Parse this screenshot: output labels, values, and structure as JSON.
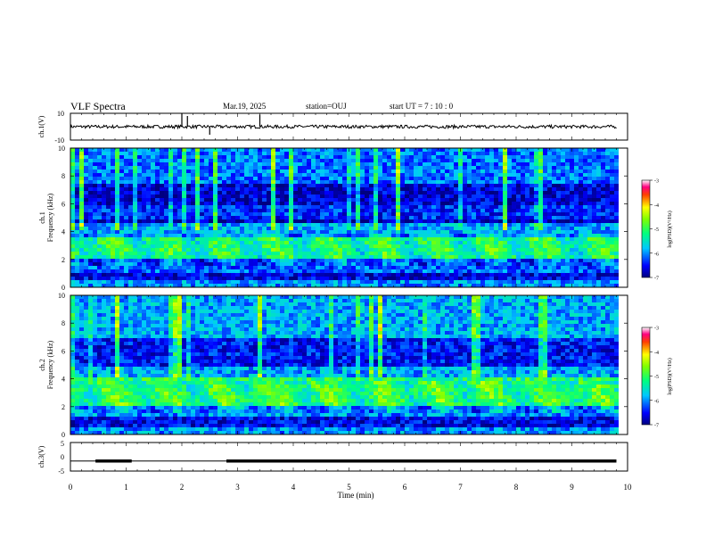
{
  "header": {
    "title": "VLF Spectra",
    "date": "Mar.19, 2025",
    "station": "station=OUJ",
    "start": "start  UT =   7 : 10 : 0"
  },
  "chart_data": [
    {
      "type": "line",
      "panel": "ch1-waveform",
      "ylabel": "ch.1(V)",
      "ylim": [
        -10,
        10
      ],
      "yticks": [
        "10",
        "-10"
      ],
      "xlim": [
        0,
        10
      ],
      "baseline": 0,
      "noise_amplitude": 1.2,
      "spikes": [
        {
          "x": 2.0,
          "y": 10
        },
        {
          "x": 2.1,
          "y": 8
        },
        {
          "x": 2.5,
          "y": -6
        },
        {
          "x": 3.4,
          "y": 9
        }
      ]
    },
    {
      "type": "heatmap",
      "panel": "ch1-spectrogram",
      "ylabel": "ch.1\nFrequency (kHz)",
      "ylim": [
        0,
        10
      ],
      "yticks": [
        "0",
        "2",
        "4",
        "6",
        "8",
        "10"
      ],
      "xlim": [
        0,
        10
      ],
      "colorbar": {
        "label": "log(PSD)(V²/Hz)",
        "ticks": [
          "-3",
          "-4",
          "-5",
          "-6",
          "-7"
        ],
        "range": [
          -7,
          -3
        ]
      },
      "bands": [
        {
          "f0": 0,
          "f1": 0.5,
          "level": -6.0
        },
        {
          "f0": 0.5,
          "f1": 1.0,
          "level": -6.6
        },
        {
          "f0": 1.0,
          "f1": 2.0,
          "level": -6.2
        },
        {
          "f0": 2.0,
          "f1": 3.5,
          "level": -5.2
        },
        {
          "f0": 3.5,
          "f1": 4.6,
          "level": -5.9
        },
        {
          "f0": 4.6,
          "f1": 5.0,
          "level": -6.8
        },
        {
          "f0": 5.0,
          "f1": 6.0,
          "level": -6.4
        },
        {
          "f0": 6.0,
          "f1": 7.5,
          "level": -6.7
        },
        {
          "f0": 7.5,
          "f1": 10.0,
          "level": -6.1
        }
      ]
    },
    {
      "type": "heatmap",
      "panel": "ch2-spectrogram",
      "ylabel": "ch.2\nFrequency (kHz)",
      "ylim": [
        0,
        10
      ],
      "yticks": [
        "0",
        "2",
        "4",
        "6",
        "8",
        "10"
      ],
      "xlim": [
        0,
        10
      ],
      "colorbar": {
        "label": "log(PSD)(V²/Hz)",
        "ticks": [
          "-3",
          "-4",
          "-5",
          "-6",
          "-7"
        ],
        "range": [
          -7,
          -3
        ]
      },
      "bands": [
        {
          "f0": 0,
          "f1": 0.5,
          "level": -6.0
        },
        {
          "f0": 0.5,
          "f1": 1.2,
          "level": -6.6
        },
        {
          "f0": 1.2,
          "f1": 2.0,
          "level": -6.0
        },
        {
          "f0": 2.0,
          "f1": 4.0,
          "level": -5.1
        },
        {
          "f0": 4.0,
          "f1": 5.0,
          "level": -5.9
        },
        {
          "f0": 5.0,
          "f1": 7.0,
          "level": -6.5
        },
        {
          "f0": 7.0,
          "f1": 10.0,
          "level": -5.9
        }
      ]
    },
    {
      "type": "line",
      "panel": "ch3-signal",
      "ylabel": "ch.3(V)",
      "ylim": [
        -5,
        5
      ],
      "yticks": [
        "5",
        "0",
        "-5"
      ],
      "xlim": [
        0,
        10
      ],
      "xlabel": "Time (min)",
      "xticks": [
        "0",
        "1",
        "2",
        "3",
        "4",
        "5",
        "6",
        "7",
        "8",
        "9",
        "10"
      ],
      "level": -1.5,
      "thick_segments": [
        [
          0.45,
          1.1
        ],
        [
          2.8,
          9.8
        ]
      ]
    }
  ]
}
